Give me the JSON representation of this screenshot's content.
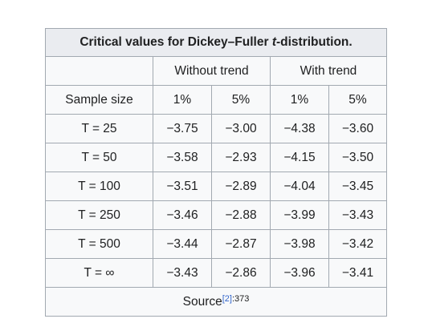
{
  "table": {
    "caption_pre": "Critical values for Dickey–Fuller ",
    "caption_italic": "t",
    "caption_post": "-distribution.",
    "group_headers": [
      "Without trend",
      "With trend"
    ],
    "column_headers": [
      "Sample size",
      "1%",
      "5%",
      "1%",
      "5%"
    ],
    "rows": [
      {
        "size": "T = 25",
        "values": [
          "−3.75",
          "−3.00",
          "−4.38",
          "−3.60"
        ]
      },
      {
        "size": "T = 50",
        "values": [
          "−3.58",
          "−2.93",
          "−4.15",
          "−3.50"
        ]
      },
      {
        "size": "T = 100",
        "values": [
          "−3.51",
          "−2.89",
          "−4.04",
          "−3.45"
        ]
      },
      {
        "size": "T = 250",
        "values": [
          "−3.46",
          "−2.88",
          "−3.99",
          "−3.43"
        ]
      },
      {
        "size": "T = 500",
        "values": [
          "−3.44",
          "−2.87",
          "−3.98",
          "−3.42"
        ]
      },
      {
        "size": "T = ∞",
        "values": [
          "−3.43",
          "−2.86",
          "−3.96",
          "−3.41"
        ]
      }
    ],
    "source_label": "Source",
    "source_ref": "[2]",
    "source_page": ":373"
  }
}
